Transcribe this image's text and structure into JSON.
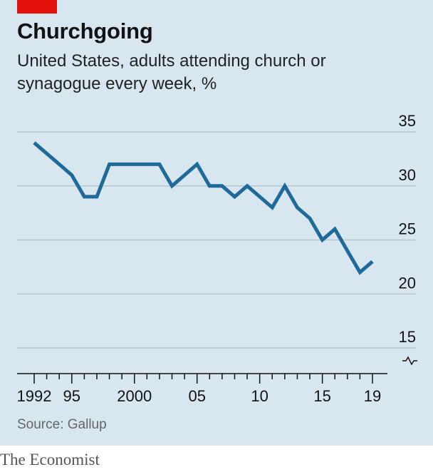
{
  "title": "Churchgoing",
  "subtitle": "United States, adults attending church or synagogue every week, %",
  "source": "Source: Gallup",
  "brand": "The Economist",
  "colors": {
    "background": "#d8e7ef",
    "accent": "#e3120b",
    "line": "#1f6a99",
    "gridline": "#b7c6ce"
  },
  "chart_data": {
    "type": "line",
    "title": "Churchgoing",
    "subtitle": "United States, adults attending church or synagogue every week, %",
    "xlabel": "",
    "ylabel": "",
    "ylim": [
      15,
      35
    ],
    "y_axis_break": true,
    "y_axis_side": "right",
    "grid": true,
    "yticks": [
      15,
      20,
      25,
      30,
      35
    ],
    "xticks": [
      {
        "value": 1992,
        "label": "1992"
      },
      {
        "value": 1995,
        "label": "95"
      },
      {
        "value": 2000,
        "label": "2000"
      },
      {
        "value": 2005,
        "label": "05"
      },
      {
        "value": 2010,
        "label": "10"
      },
      {
        "value": 2015,
        "label": "15"
      },
      {
        "value": 2019,
        "label": "19"
      }
    ],
    "x": [
      1992,
      1993,
      1994,
      1995,
      1996,
      1997,
      1998,
      1999,
      2000,
      2001,
      2002,
      2003,
      2004,
      2005,
      2006,
      2007,
      2008,
      2009,
      2010,
      2011,
      2012,
      2013,
      2014,
      2015,
      2016,
      2017,
      2018,
      2019
    ],
    "series": [
      {
        "values": [
          34,
          33,
          32,
          31,
          29,
          29,
          32,
          32,
          32,
          32,
          32,
          30,
          31,
          32,
          30,
          30,
          29,
          30,
          29,
          28,
          30,
          28,
          27,
          25,
          26,
          24,
          22,
          23
        ]
      }
    ]
  }
}
